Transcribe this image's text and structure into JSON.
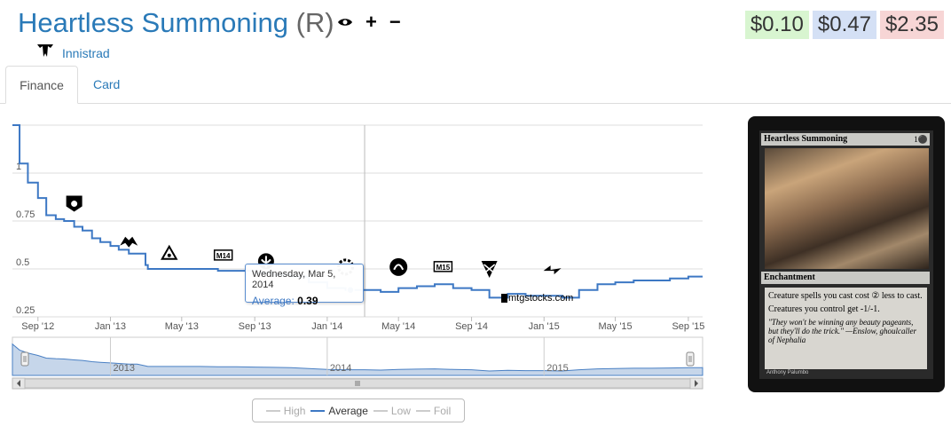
{
  "header": {
    "card_name": "Heartless Summoning",
    "rarity": "(R)",
    "icons": [
      "eye-icon",
      "plus-icon",
      "minus-icon"
    ],
    "set_name": "Innistrad"
  },
  "prices": {
    "low": "$0.10",
    "mid": "$0.47",
    "high": "$2.35",
    "colors": {
      "low_bg": "#d8f5d0",
      "mid_bg": "#d4e0f5",
      "high_bg": "#f7d5d5"
    }
  },
  "tabs": [
    {
      "label": "Finance",
      "active": true
    },
    {
      "label": "Card",
      "active": false
    }
  ],
  "tooltip": {
    "date": "Wednesday, Mar 5, 2014",
    "series": "Average",
    "value": "0.39"
  },
  "watermark": "mtgstocks.com",
  "legend": [
    {
      "label": "High",
      "active": false
    },
    {
      "label": "Average",
      "active": true
    },
    {
      "label": "Low",
      "active": false
    },
    {
      "label": "Foil",
      "active": false
    }
  ],
  "navigator_labels": [
    "2013",
    "2014",
    "2015"
  ],
  "chart_data": {
    "type": "line",
    "x_tick_labels": [
      "Sep '12",
      "Jan '13",
      "May '13",
      "Sep '13",
      "Jan '14",
      "May '14",
      "Sep '14",
      "Jan '15",
      "May '15",
      "Sep '15"
    ],
    "y_tick_labels": [
      "0.25",
      "0.5",
      "0.75",
      "1"
    ],
    "ylim": [
      0.25,
      1.25
    ],
    "line_color": "#3d78c4",
    "series": [
      {
        "name": "Average",
        "x": [
          "2012-07-20",
          "2012-08-01",
          "2012-08-15",
          "2012-09-01",
          "2012-09-15",
          "2012-10-01",
          "2012-10-15",
          "2012-11-01",
          "2012-11-15",
          "2012-12-01",
          "2012-12-15",
          "2013-01-01",
          "2013-01-15",
          "2013-02-01",
          "2013-02-15",
          "2013-03-01",
          "2013-03-05",
          "2013-04-01",
          "2013-05-01",
          "2013-06-01",
          "2013-07-01",
          "2013-08-01",
          "2013-09-01",
          "2013-10-01",
          "2013-11-01",
          "2013-12-01",
          "2014-01-01",
          "2014-02-01",
          "2014-03-05",
          "2014-04-01",
          "2014-05-01",
          "2014-06-01",
          "2014-07-01",
          "2014-08-01",
          "2014-09-01",
          "2014-10-01",
          "2014-11-01",
          "2014-12-01",
          "2015-01-01",
          "2015-02-01",
          "2015-03-01",
          "2015-04-01",
          "2015-05-01",
          "2015-06-01",
          "2015-07-01",
          "2015-08-01",
          "2015-09-01",
          "2015-09-25"
        ],
        "values": [
          1.25,
          1.05,
          0.95,
          0.87,
          0.78,
          0.76,
          0.75,
          0.72,
          0.7,
          0.66,
          0.64,
          0.62,
          0.6,
          0.58,
          0.58,
          0.52,
          0.5,
          0.5,
          0.5,
          0.5,
          0.49,
          0.49,
          0.48,
          0.47,
          0.46,
          0.43,
          0.4,
          0.39,
          0.39,
          0.38,
          0.4,
          0.41,
          0.42,
          0.4,
          0.39,
          0.35,
          0.37,
          0.36,
          0.36,
          0.35,
          0.39,
          0.42,
          0.43,
          0.44,
          0.44,
          0.45,
          0.46,
          0.46
        ]
      }
    ],
    "set_release_icons": [
      "set-icon-1",
      "set-icon-2",
      "set-icon-3",
      "m14-set-icon",
      "set-icon-5",
      "set-icon-6",
      "set-icon-7",
      "m15-set-icon",
      "set-icon-9",
      "set-icon-10"
    ]
  },
  "card_image": {
    "name": "Heartless Summoning",
    "cost": "1⚫",
    "type": "Enchantment",
    "rules": [
      "Creature spells you cast cost ② less to cast.",
      "Creatures you control get -1/-1."
    ],
    "flavor": "\"They won't be winning any beauty pageants, but they'll do the trick.\" —Enslow, ghoulcaller of Nephalia",
    "artist": "Anthony Palumbo"
  }
}
